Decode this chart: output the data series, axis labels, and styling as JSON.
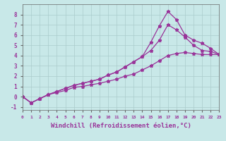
{
  "background_color": "#c8e8e8",
  "grid_color": "#aacccc",
  "line_color": "#993399",
  "marker": "*",
  "xlabel": "Windchill (Refroidissement éolien,°C)",
  "xlabel_fontsize": 6.5,
  "xtick_labels": [
    "0",
    "1",
    "2",
    "3",
    "4",
    "5",
    "6",
    "7",
    "8",
    "9",
    "10",
    "11",
    "12",
    "13",
    "14",
    "15",
    "16",
    "17",
    "18",
    "19",
    "20",
    "21",
    "22",
    "23"
  ],
  "ytick_labels": [
    "-1",
    "0",
    "1",
    "2",
    "3",
    "4",
    "5",
    "6",
    "7",
    "8"
  ],
  "xlim": [
    0,
    23
  ],
  "ylim": [
    -1.3,
    9.0
  ],
  "line1_x": [
    0,
    1,
    2,
    3,
    4,
    5,
    6,
    7,
    8,
    9,
    10,
    11,
    12,
    13,
    14,
    15,
    16,
    17,
    18,
    19,
    20,
    21,
    22,
    23
  ],
  "line1_y": [
    0.0,
    -0.6,
    -0.2,
    0.2,
    0.4,
    0.6,
    0.9,
    1.0,
    1.15,
    1.3,
    1.5,
    1.7,
    2.0,
    2.2,
    2.6,
    3.0,
    3.5,
    4.0,
    4.2,
    4.3,
    4.2,
    4.1,
    4.1,
    4.1
  ],
  "line2_x": [
    0,
    1,
    2,
    3,
    4,
    5,
    6,
    7,
    8,
    9,
    10,
    11,
    12,
    13,
    14,
    15,
    16,
    17,
    18,
    19,
    20,
    21,
    22,
    23
  ],
  "line2_y": [
    0.0,
    -0.6,
    -0.2,
    0.2,
    0.5,
    0.8,
    1.1,
    1.3,
    1.5,
    1.7,
    2.1,
    2.4,
    2.9,
    3.4,
    3.9,
    5.3,
    6.9,
    8.3,
    7.5,
    6.0,
    5.5,
    5.2,
    4.7,
    4.1
  ],
  "line3_x": [
    0,
    1,
    2,
    3,
    4,
    5,
    6,
    7,
    8,
    9,
    10,
    11,
    12,
    13,
    14,
    15,
    16,
    17,
    18,
    19,
    20,
    21,
    22,
    23
  ],
  "line3_y": [
    0.0,
    -0.6,
    -0.2,
    0.2,
    0.5,
    0.8,
    1.1,
    1.3,
    1.5,
    1.7,
    2.1,
    2.4,
    2.9,
    3.4,
    3.9,
    4.5,
    5.5,
    7.0,
    6.5,
    5.8,
    5.0,
    4.5,
    4.4,
    4.1
  ]
}
